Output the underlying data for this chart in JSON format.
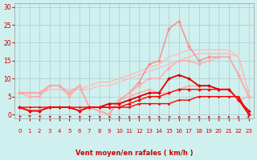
{
  "bg_color": "#cff0ee",
  "grid_color": "#aacccc",
  "xlabel": "Vent moyen/en rafales ( km/h )",
  "xlabel_color": "#cc0000",
  "tick_color": "#cc0000",
  "x_ticks": [
    0,
    1,
    2,
    3,
    4,
    5,
    6,
    7,
    8,
    9,
    10,
    11,
    12,
    13,
    14,
    15,
    16,
    17,
    18,
    19,
    20,
    21,
    22,
    23
  ],
  "ylim": [
    -1,
    31
  ],
  "xlim": [
    -0.5,
    23.5
  ],
  "yticks": [
    0,
    5,
    10,
    15,
    20,
    25,
    30
  ],
  "series": [
    {
      "x": [
        0,
        1,
        2,
        3,
        4,
        5,
        6,
        7,
        8,
        9,
        10,
        11,
        12,
        13,
        14,
        15,
        16,
        17,
        18,
        19,
        20,
        21,
        22,
        23
      ],
      "y": [
        6,
        6,
        6,
        7,
        7,
        7,
        7,
        7,
        8,
        8,
        9,
        10,
        11,
        12,
        13,
        14,
        15,
        16,
        17,
        17,
        17,
        17,
        16,
        6
      ],
      "color": "#ffbbbb",
      "lw": 1.0,
      "marker": null,
      "ms": 0
    },
    {
      "x": [
        0,
        1,
        2,
        3,
        4,
        5,
        6,
        7,
        8,
        9,
        10,
        11,
        12,
        13,
        14,
        15,
        16,
        17,
        18,
        19,
        20,
        21,
        22,
        23
      ],
      "y": [
        6,
        6,
        6,
        7,
        7,
        7,
        7,
        8,
        9,
        9,
        10,
        11,
        12,
        13,
        14,
        16,
        17,
        18,
        18,
        18,
        18,
        18,
        16,
        6
      ],
      "color": "#ffbbbb",
      "lw": 1.0,
      "marker": null,
      "ms": 0
    },
    {
      "x": [
        0,
        1,
        2,
        3,
        4,
        5,
        6,
        7,
        8,
        9,
        10,
        11,
        12,
        13,
        14,
        15,
        16,
        17,
        18,
        19,
        20,
        21,
        22,
        23
      ],
      "y": [
        6,
        5,
        5,
        8,
        8,
        5,
        8,
        2,
        1,
        0,
        4,
        5,
        6,
        7,
        6,
        6,
        7,
        8,
        8,
        8,
        7,
        7,
        4,
        5
      ],
      "color": "#ffaaaa",
      "lw": 1.0,
      "marker": "D",
      "ms": 2.0
    },
    {
      "x": [
        0,
        1,
        2,
        3,
        4,
        5,
        6,
        7,
        8,
        9,
        10,
        11,
        12,
        13,
        14,
        15,
        16,
        17,
        18,
        19,
        20,
        21,
        22,
        23
      ],
      "y": [
        6,
        6,
        6,
        8,
        8,
        6,
        8,
        2,
        1,
        0,
        4,
        6,
        9,
        14,
        15,
        24,
        26,
        19,
        15,
        16,
        16,
        16,
        11,
        5
      ],
      "color": "#ff8888",
      "lw": 1.0,
      "marker": "D",
      "ms": 2.0
    },
    {
      "x": [
        0,
        1,
        2,
        3,
        4,
        5,
        6,
        7,
        8,
        9,
        10,
        11,
        12,
        13,
        14,
        15,
        16,
        17,
        18,
        19,
        20,
        21,
        22,
        23
      ],
      "y": [
        6,
        6,
        6,
        8,
        8,
        6,
        8,
        2,
        1,
        0,
        4,
        6,
        8,
        10,
        10,
        13,
        15,
        15,
        14,
        15,
        16,
        16,
        11,
        5
      ],
      "color": "#ffaaaa",
      "lw": 1.0,
      "marker": "D",
      "ms": 2.0
    },
    {
      "x": [
        0,
        1,
        2,
        3,
        4,
        5,
        6,
        7,
        8,
        9,
        10,
        11,
        12,
        13,
        14,
        15,
        16,
        17,
        18,
        19,
        20,
        21,
        22,
        23
      ],
      "y": [
        2,
        1,
        1,
        2,
        2,
        2,
        1,
        2,
        2,
        3,
        3,
        4,
        5,
        6,
        6,
        10,
        11,
        10,
        8,
        8,
        7,
        7,
        4,
        1
      ],
      "color": "#dd0000",
      "lw": 1.3,
      "marker": "D",
      "ms": 2.0
    },
    {
      "x": [
        0,
        1,
        2,
        3,
        4,
        5,
        6,
        7,
        8,
        9,
        10,
        11,
        12,
        13,
        14,
        15,
        16,
        17,
        18,
        19,
        20,
        21,
        22,
        23
      ],
      "y": [
        2,
        1,
        1,
        2,
        2,
        2,
        1,
        2,
        2,
        2,
        2,
        3,
        4,
        5,
        5,
        6,
        7,
        7,
        7,
        7,
        7,
        7,
        4,
        0
      ],
      "color": "#ff0000",
      "lw": 1.0,
      "marker": "D",
      "ms": 2.0
    },
    {
      "x": [
        0,
        1,
        2,
        3,
        4,
        5,
        6,
        7,
        8,
        9,
        10,
        11,
        12,
        13,
        14,
        15,
        16,
        17,
        18,
        19,
        20,
        21,
        22,
        23
      ],
      "y": [
        2,
        2,
        2,
        2,
        2,
        2,
        2,
        2,
        2,
        2,
        2,
        2,
        3,
        3,
        3,
        3,
        4,
        4,
        5,
        5,
        5,
        5,
        5,
        0
      ],
      "color": "#ff0000",
      "lw": 1.0,
      "marker": "D",
      "ms": 1.5
    }
  ],
  "wind_arrows_x": [
    0,
    1,
    2,
    3,
    4,
    5,
    6,
    7,
    8,
    9,
    10,
    11,
    12,
    13,
    14,
    15,
    16,
    17,
    18,
    19,
    20,
    21,
    22,
    23
  ],
  "wind_arrows_angle": [
    210,
    220,
    210,
    200,
    190,
    200,
    195,
    200,
    195,
    190,
    185,
    185,
    180,
    185,
    185,
    190,
    185,
    185,
    185,
    185,
    185,
    180,
    175,
    170
  ]
}
